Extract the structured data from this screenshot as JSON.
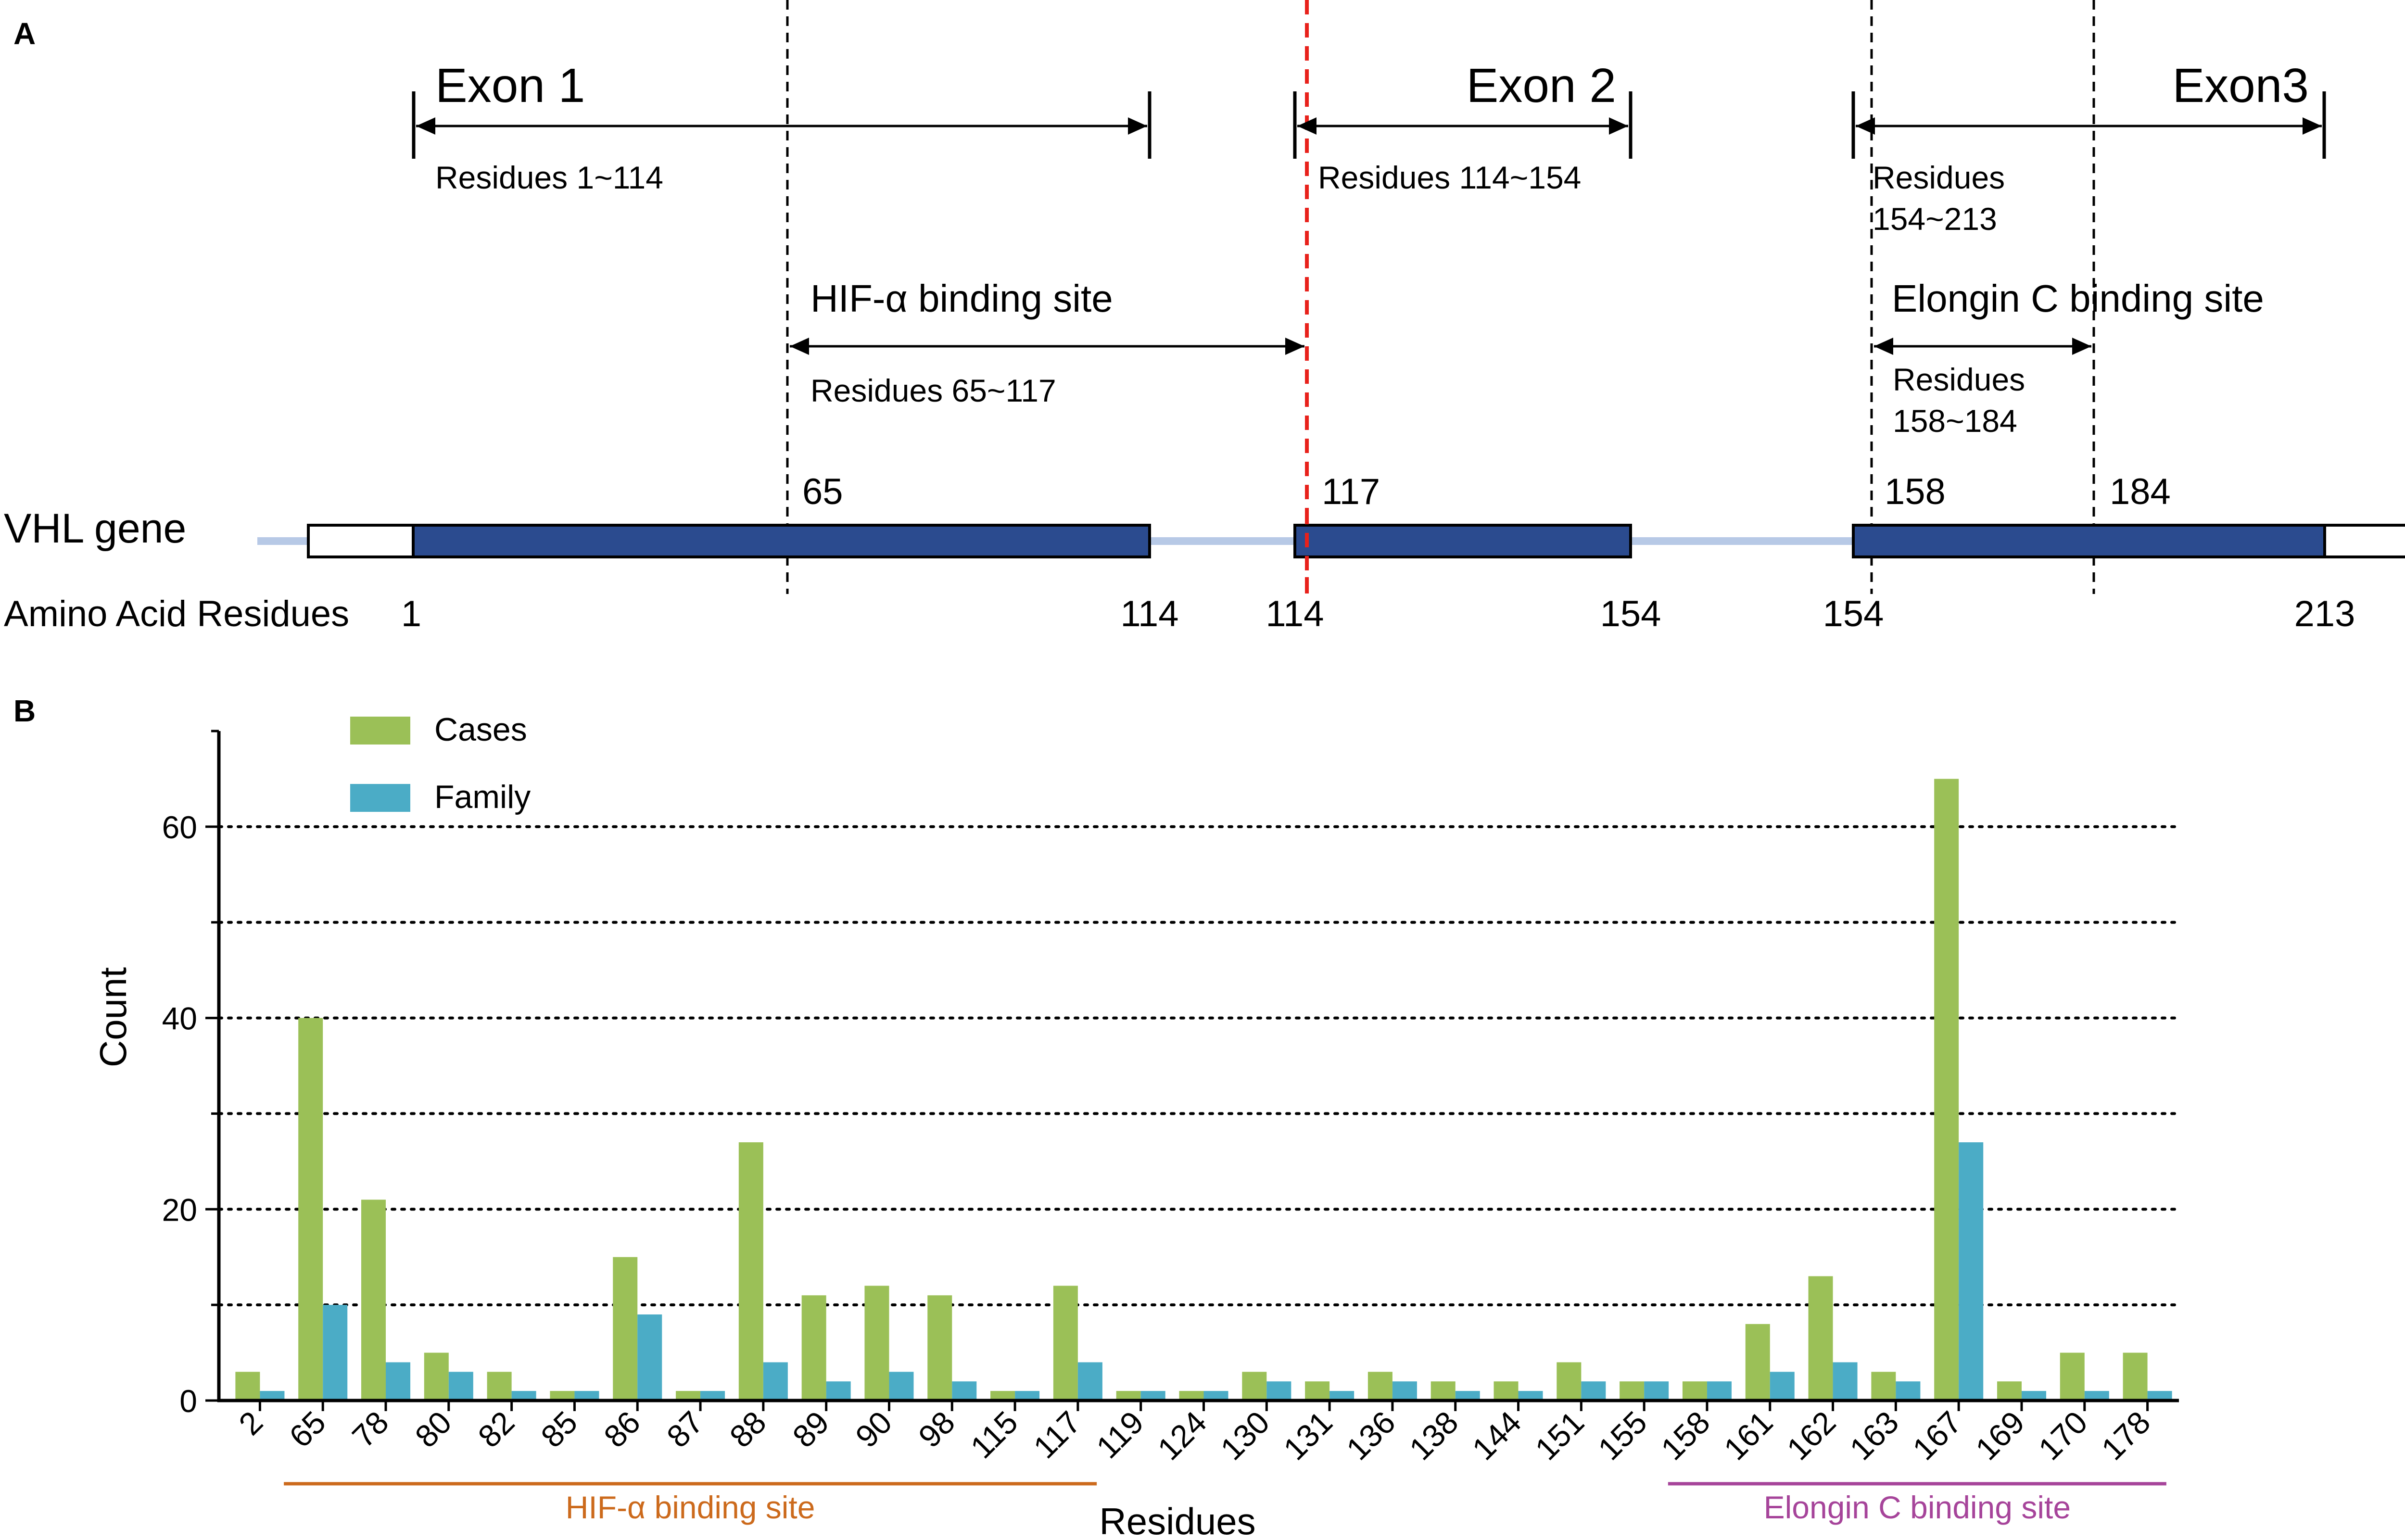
{
  "panel_a": {
    "label": "A",
    "exons": [
      {
        "title": "Exon 1",
        "residues": "Residues 1~114"
      },
      {
        "title": "Exon 2",
        "residues": "Residues 114~154"
      },
      {
        "title": "Exon3",
        "residues_line1": "Residues",
        "residues_line2": "154~213"
      }
    ],
    "hif_site": {
      "title": "HIF-α binding site",
      "residues": "Residues 65~117"
    },
    "elongin_site": {
      "title": "Elongin C binding site",
      "residues_line1": "Residues",
      "residues_line2": "158~184"
    },
    "gene_label": "VHL gene",
    "marker_labels": [
      "65",
      "117",
      "158",
      "184"
    ],
    "aa_label": "Amino Acid Residues",
    "aa_ticks": [
      "1",
      "114",
      "114",
      "154",
      "154",
      "213"
    ],
    "colors": {
      "exon": "#2b4b8f",
      "backbone": "#b7c9e6",
      "red_line": "#e8211b"
    }
  },
  "panel_b": {
    "label": "B",
    "chart_data": {
      "type": "bar",
      "title": "",
      "xlabel": "Residues",
      "ylabel": "Count",
      "ylim": [
        0,
        70
      ],
      "yticks": [
        0,
        20,
        40,
        60
      ],
      "gridlines": [
        10,
        20,
        30,
        40,
        50,
        60
      ],
      "grid": "dotted horizontal",
      "legend_position": "top-left",
      "categories": [
        "2",
        "65",
        "78",
        "80",
        "82",
        "85",
        "86",
        "87",
        "88",
        "89",
        "90",
        "98",
        "115",
        "117",
        "119",
        "124",
        "130",
        "131",
        "136",
        "138",
        "144",
        "151",
        "155",
        "158",
        "161",
        "162",
        "163",
        "167",
        "169",
        "170",
        "178"
      ],
      "series": [
        {
          "name": "Cases",
          "color": "#9bc057",
          "values": [
            3,
            40,
            21,
            5,
            3,
            1,
            15,
            1,
            27,
            11,
            12,
            11,
            1,
            12,
            1,
            1,
            3,
            2,
            3,
            2,
            2,
            4,
            2,
            2,
            8,
            13,
            3,
            65,
            2,
            5,
            5
          ]
        },
        {
          "name": "Family",
          "color": "#4bacc6",
          "values": [
            1,
            10,
            4,
            3,
            1,
            1,
            9,
            1,
            4,
            2,
            3,
            2,
            1,
            4,
            1,
            1,
            2,
            1,
            2,
            1,
            1,
            2,
            2,
            2,
            3,
            4,
            2,
            27,
            1,
            1,
            1
          ]
        }
      ],
      "annotations": [
        {
          "text": "HIF-α binding site",
          "from": "65",
          "to": "117",
          "color": "#cc6a1c"
        },
        {
          "text": "Elongin C binding site",
          "from": "158",
          "to": "178",
          "color": "#a6449a"
        }
      ]
    }
  }
}
